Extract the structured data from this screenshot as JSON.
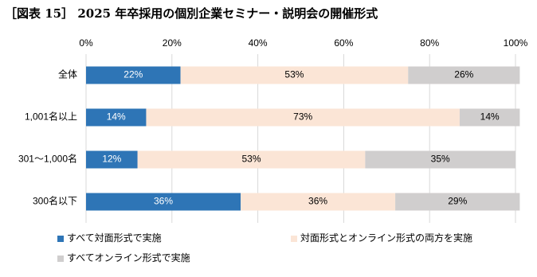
{
  "chart_data": {
    "type": "bar",
    "orientation": "horizontal",
    "stacked": true,
    "title": "［図表 15］ 2025 年卒採用の個別企業セミナー・説明会の開催形式",
    "categories": [
      "全体",
      "1,001名以上",
      "301～1,000名",
      "300名以下"
    ],
    "series": [
      {
        "name": "すべて対面形式で実施",
        "color": "#2e75b6",
        "label_color": "#ffffff",
        "values": [
          22,
          14,
          12,
          36
        ],
        "value_labels": [
          "22%",
          "14%",
          "12%",
          "36%"
        ]
      },
      {
        "name": "対面形式とオンライン形式の両方を実施",
        "color": "#fbe5d6",
        "label_color": "#000000",
        "values": [
          53,
          73,
          53,
          36
        ],
        "value_labels": [
          "53%",
          "73%",
          "53%",
          "36%"
        ]
      },
      {
        "name": "すべてオンライン形式で実施",
        "color": "#d0cece",
        "label_color": "#000000",
        "values": [
          26,
          14,
          35,
          29
        ],
        "value_labels": [
          "26%",
          "14%",
          "35%",
          "29%"
        ]
      }
    ],
    "xlim": [
      0,
      100
    ],
    "xticks": [
      {
        "value": 0,
        "label": "0%"
      },
      {
        "value": 20,
        "label": "20%"
      },
      {
        "value": 40,
        "label": "40%"
      },
      {
        "value": 60,
        "label": "60%"
      },
      {
        "value": 80,
        "label": "80%"
      },
      {
        "value": 100,
        "label": "100%"
      }
    ],
    "grid": true,
    "legend": "bottom"
  }
}
